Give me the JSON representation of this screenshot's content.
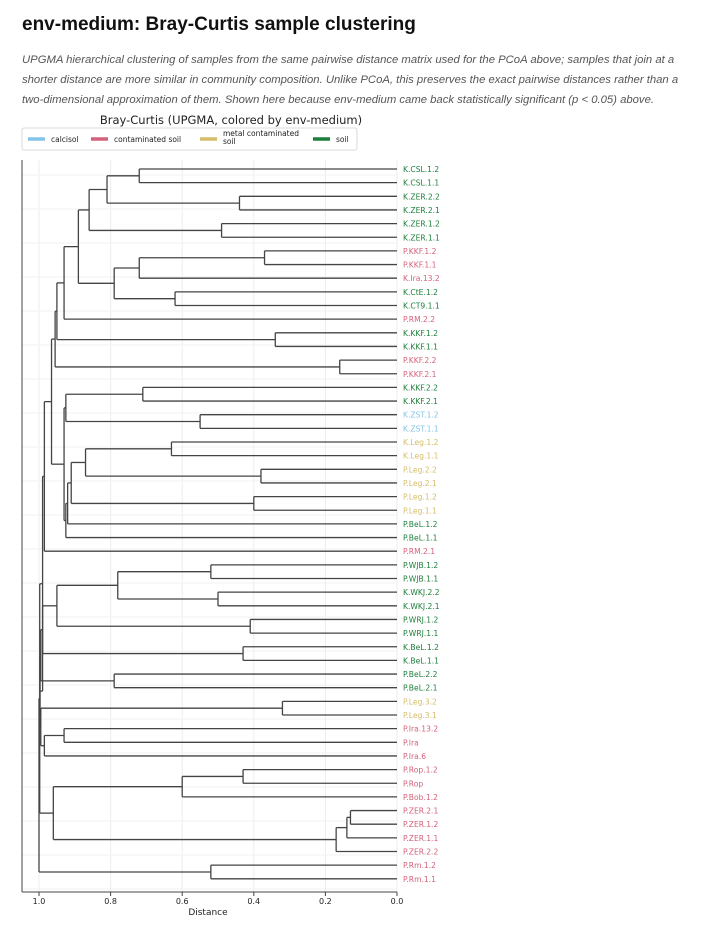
{
  "page": {
    "title": "env-medium: Bray-Curtis sample clustering",
    "description": "UPGMA hierarchical clustering of samples from the same pairwise distance matrix used for the PCoA above; samples that join at a shorter distance are more similar in community composition. Unlike PCoA, this preserves the exact pairwise distances rather than a two-dimensional approximation of them. Shown here because env-medium came back statistically significant (p < 0.05) above."
  },
  "chart_data": {
    "type": "dendrogram",
    "title": "Bray-Curtis (UPGMA, colored by env-medium)",
    "xlabel": "Distance",
    "xlim": [
      1.0,
      0.0
    ],
    "x_ticks": [
      "1.0",
      "0.8",
      "0.6",
      "0.4",
      "0.2",
      "0.0"
    ],
    "x_tick_values": [
      1.0,
      0.8,
      0.6,
      0.4,
      0.2,
      0.0
    ],
    "grid": true,
    "legend_position": "top",
    "colors": {
      "calcisol": "#85c4ea",
      "contaminated soil": "#d4627a",
      "metal contaminated soil": "#d6bd6a",
      "soil": "#1c7f3a",
      "branch": "#444444"
    },
    "legend": [
      {
        "label": "calcisol",
        "group": "calcisol"
      },
      {
        "label": "contaminated soil",
        "group": "contaminated soil"
      },
      {
        "label": "metal contaminated\nsoil",
        "group": "metal contaminated soil"
      },
      {
        "label": "soil",
        "group": "soil"
      }
    ],
    "leaves": [
      {
        "label": "K.CSL.1.2",
        "group": "soil"
      },
      {
        "label": "K.CSL.1.1",
        "group": "soil"
      },
      {
        "label": "K.ZER.2.2",
        "group": "soil"
      },
      {
        "label": "K.ZER.2.1",
        "group": "soil"
      },
      {
        "label": "K.ZER.1.2",
        "group": "soil"
      },
      {
        "label": "K.ZER.1.1",
        "group": "soil"
      },
      {
        "label": "P.KKF.1.2",
        "group": "contaminated soil"
      },
      {
        "label": "P.KKF.1.1",
        "group": "contaminated soil"
      },
      {
        "label": "K.Ira.13.2",
        "group": "contaminated soil"
      },
      {
        "label": "K.CtE.1.2",
        "group": "soil"
      },
      {
        "label": "K.CT9.1.1",
        "group": "soil"
      },
      {
        "label": "P.RM.2.2",
        "group": "contaminated soil"
      },
      {
        "label": "K.KKF.1.2",
        "group": "soil"
      },
      {
        "label": "K.KKF.1.1",
        "group": "soil"
      },
      {
        "label": "P.KKF.2.2",
        "group": "contaminated soil"
      },
      {
        "label": "P.KKF.2.1",
        "group": "contaminated soil"
      },
      {
        "label": "K.KKF.2.2",
        "group": "soil"
      },
      {
        "label": "K.KKF.2.1",
        "group": "soil"
      },
      {
        "label": "K.ZST.1.2",
        "group": "calcisol"
      },
      {
        "label": "K.ZST.1.1",
        "group": "calcisol"
      },
      {
        "label": "K.Leg.1.2",
        "group": "metal contaminated soil"
      },
      {
        "label": "K.Leg.1.1",
        "group": "metal contaminated soil"
      },
      {
        "label": "P.Leg.2.2",
        "group": "metal contaminated soil"
      },
      {
        "label": "P.Leg.2.1",
        "group": "metal contaminated soil"
      },
      {
        "label": "P.Leg.1.2",
        "group": "metal contaminated soil"
      },
      {
        "label": "P.Leg.1.1",
        "group": "metal contaminated soil"
      },
      {
        "label": "P.BeL.1.2",
        "group": "soil"
      },
      {
        "label": "P.BeL.1.1",
        "group": "soil"
      },
      {
        "label": "P.RM.2.1",
        "group": "contaminated soil"
      },
      {
        "label": "P.WJB.1.2",
        "group": "soil"
      },
      {
        "label": "P.WJB.1.1",
        "group": "soil"
      },
      {
        "label": "K.WKJ.2.2",
        "group": "soil"
      },
      {
        "label": "K.WKJ.2.1",
        "group": "soil"
      },
      {
        "label": "P.WRJ.1.2",
        "group": "soil"
      },
      {
        "label": "P.WRJ.1.1",
        "group": "soil"
      },
      {
        "label": "K.BeL.1.2",
        "group": "soil"
      },
      {
        "label": "K.BeL.1.1",
        "group": "soil"
      },
      {
        "label": "P.BeL.2.2",
        "group": "soil"
      },
      {
        "label": "P.BeL.2.1",
        "group": "soil"
      },
      {
        "label": "P.Leg.3.2",
        "group": "metal contaminated soil"
      },
      {
        "label": "P.Leg.3.1",
        "group": "metal contaminated soil"
      },
      {
        "label": "P.Ira.13.2",
        "group": "contaminated soil"
      },
      {
        "label": "P.Ira",
        "group": "contaminated soil"
      },
      {
        "label": "P.Ira.6",
        "group": "contaminated soil"
      },
      {
        "label": "P.Rop.1.2",
        "group": "contaminated soil"
      },
      {
        "label": "P.Rop",
        "group": "contaminated soil"
      },
      {
        "label": "P.Bob.1.2",
        "group": "contaminated soil"
      },
      {
        "label": "P.ZER.2.1",
        "group": "contaminated soil"
      },
      {
        "label": "P.ZER.1.2",
        "group": "contaminated soil"
      },
      {
        "label": "P.ZER.1.1",
        "group": "contaminated soil"
      },
      {
        "label": "P.ZER.2.2",
        "group": "contaminated soil"
      },
      {
        "label": "P.Rm.1.2",
        "group": "contaminated soil"
      },
      {
        "label": "P.Rm.1.1",
        "group": "contaminated soil"
      }
    ],
    "merges": [
      {
        "id": "m1",
        "a": 0,
        "b": 1,
        "d": 0.72
      },
      {
        "id": "m2",
        "a": 2,
        "b": 3,
        "d": 0.44
      },
      {
        "id": "m3",
        "a": "m1",
        "b": "m2",
        "d": 0.81
      },
      {
        "id": "m4",
        "a": 4,
        "b": 5,
        "d": 0.49
      },
      {
        "id": "m5",
        "a": "m3",
        "b": "m4",
        "d": 0.86
      },
      {
        "id": "m6",
        "a": 6,
        "b": 7,
        "d": 0.37
      },
      {
        "id": "m7",
        "a": "m6",
        "b": 8,
        "d": 0.72
      },
      {
        "id": "m8",
        "a": 9,
        "b": 10,
        "d": 0.62
      },
      {
        "id": "m9",
        "a": "m7",
        "b": "m8",
        "d": 0.79
      },
      {
        "id": "m10",
        "a": "m5",
        "b": "m9",
        "d": 0.89
      },
      {
        "id": "m11",
        "a": "m10",
        "b": 11,
        "d": 0.93
      },
      {
        "id": "m12",
        "a": 12,
        "b": 13,
        "d": 0.34
      },
      {
        "id": "m13",
        "a": "m11",
        "b": "m12",
        "d": 0.95
      },
      {
        "id": "m14",
        "a": 14,
        "b": 15,
        "d": 0.16
      },
      {
        "id": "m15",
        "a": "m13",
        "b": "m14",
        "d": 0.955
      },
      {
        "id": "m16",
        "a": 16,
        "b": 17,
        "d": 0.71
      },
      {
        "id": "m17",
        "a": 18,
        "b": 19,
        "d": 0.55
      },
      {
        "id": "m18",
        "a": "m16",
        "b": "m17",
        "d": 0.925
      },
      {
        "id": "m19",
        "a": 20,
        "b": 21,
        "d": 0.63
      },
      {
        "id": "m20",
        "a": 22,
        "b": 23,
        "d": 0.38
      },
      {
        "id": "m21",
        "a": "m19",
        "b": "m20",
        "d": 0.87
      },
      {
        "id": "m22",
        "a": 24,
        "b": 25,
        "d": 0.4
      },
      {
        "id": "m23",
        "a": "m21",
        "b": "m22",
        "d": 0.91
      },
      {
        "id": "m24",
        "a": "m23",
        "b": 26,
        "d": 0.92
      },
      {
        "id": "m25",
        "a": "m24",
        "b": 27,
        "d": 0.925
      },
      {
        "id": "m26",
        "a": "m18",
        "b": "m25",
        "d": 0.93
      },
      {
        "id": "m27",
        "a": "m15",
        "b": "m26",
        "d": 0.965
      },
      {
        "id": "m28",
        "a": "m27",
        "b": 28,
        "d": 0.985
      },
      {
        "id": "m29",
        "a": 29,
        "b": 30,
        "d": 0.52
      },
      {
        "id": "m30",
        "a": 31,
        "b": 32,
        "d": 0.5
      },
      {
        "id": "m31",
        "a": "m29",
        "b": "m30",
        "d": 0.78
      },
      {
        "id": "m32",
        "a": 33,
        "b": 34,
        "d": 0.41
      },
      {
        "id": "m33",
        "a": "m31",
        "b": "m32",
        "d": 0.95
      },
      {
        "id": "m34",
        "a": 35,
        "b": 36,
        "d": 0.43
      },
      {
        "id": "m35",
        "a": "m33",
        "b": "m34",
        "d": 0.99
      },
      {
        "id": "m36",
        "a": 37,
        "b": 38,
        "d": 0.79
      },
      {
        "id": "m37",
        "a": "m35",
        "b": "m36",
        "d": 0.995
      },
      {
        "id": "m38",
        "a": 39,
        "b": 40,
        "d": 0.32
      },
      {
        "id": "m39",
        "a": 41,
        "b": 42,
        "d": 0.93
      },
      {
        "id": "m40",
        "a": "m39",
        "b": 43,
        "d": 0.985
      },
      {
        "id": "m41",
        "a": "m38",
        "b": "m40",
        "d": 0.995
      },
      {
        "id": "m42",
        "a": "m37",
        "b": "m41",
        "d": 0.997
      },
      {
        "id": "m43",
        "a": "m28",
        "b": "m42",
        "d": 0.99
      },
      {
        "id": "m44",
        "a": 44,
        "b": 45,
        "d": 0.43
      },
      {
        "id": "m45",
        "a": "m44",
        "b": 46,
        "d": 0.6
      },
      {
        "id": "m46",
        "a": 47,
        "b": 48,
        "d": 0.13
      },
      {
        "id": "m47",
        "a": "m46",
        "b": 49,
        "d": 0.14
      },
      {
        "id": "m48",
        "a": "m47",
        "b": 50,
        "d": 0.17
      },
      {
        "id": "m49",
        "a": "m45",
        "b": "m48",
        "d": 0.96
      },
      {
        "id": "m50",
        "a": "m43",
        "b": "m49",
        "d": 0.998
      },
      {
        "id": "m51",
        "a": 51,
        "b": 52,
        "d": 0.52
      },
      {
        "id": "m52",
        "a": "m50",
        "b": "m51",
        "d": 1.0
      }
    ]
  }
}
